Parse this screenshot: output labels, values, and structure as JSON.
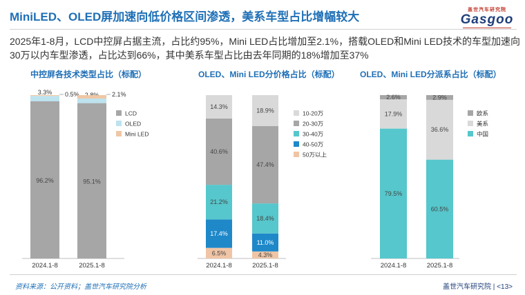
{
  "header": {
    "title": "MiniLED、OLED屏加速向低价格区间渗透，美系车型占比增幅较大",
    "logo_cn": "盖世汽车研究院",
    "logo_en": "Gasgoo"
  },
  "summary": "2025年1-8月，LCD中控屏占据主流，占比约95%，Mini LED占比增加至2.1%，搭载OLED和Mini LED技术的车型加速向30万以内车型渗透，占比达到66%，其中美系车型占比由去年同期的18%增加至37%",
  "footer": {
    "source": "资料来源：公开资料；盖世汽车研究院分析",
    "page": "盖世汽车研究院 | <13>"
  },
  "colors": {
    "LCD": "#a6a6a6",
    "OLED": "#bde3ef",
    "MiniLED": "#efc7a5",
    "p10_20": "#d9d9d9",
    "p20_30": "#a6a6a6",
    "p30_40": "#56c7cc",
    "p40_50": "#1e88c9",
    "p50": "#f0c5a5",
    "eu": "#a6a6a6",
    "us": "#d9d9d9",
    "cn": "#56c7cc"
  },
  "chart_data": [
    {
      "type": "bar",
      "stacked": true,
      "title": "中控屏各技术类型占比（标配）",
      "categories": [
        "2024.1-8",
        "2025.1-8"
      ],
      "series": [
        {
          "name": "LCD",
          "key": "LCD",
          "values": [
            96.2,
            95.1
          ],
          "labels": [
            "96.2%",
            "95.1%"
          ]
        },
        {
          "name": "OLED",
          "key": "OLED",
          "values": [
            3.3,
            2.8
          ],
          "labels": [
            "3.3%",
            "2.8%"
          ]
        },
        {
          "name": "Mini LED",
          "key": "MiniLED",
          "values": [
            0.5,
            2.1
          ],
          "labels": [
            "0.5%",
            "2.1%"
          ]
        }
      ],
      "ylim": [
        0,
        100
      ]
    },
    {
      "type": "bar",
      "stacked": true,
      "title": "OLED、Mini LED分价格占比（标配）",
      "categories": [
        "2024.1-8",
        "2025.1-8"
      ],
      "series": [
        {
          "name": "50万以上",
          "key": "p50",
          "values": [
            6.5,
            4.3
          ],
          "labels": [
            "6.5%",
            "4.3%"
          ]
        },
        {
          "name": "40-50万",
          "key": "p40_50",
          "values": [
            17.4,
            11.0
          ],
          "labels": [
            "17.4%",
            "11.0%"
          ]
        },
        {
          "name": "30-40万",
          "key": "p30_40",
          "values": [
            21.2,
            18.4
          ],
          "labels": [
            "21.2%",
            "18.4%"
          ]
        },
        {
          "name": "20-30万",
          "key": "p20_30",
          "values": [
            40.6,
            47.4
          ],
          "labels": [
            "40.6%",
            "47.4%"
          ]
        },
        {
          "name": "10-20万",
          "key": "p10_20",
          "values": [
            14.3,
            18.9
          ],
          "labels": [
            "14.3%",
            "18.9%"
          ]
        }
      ],
      "legend_order": [
        "10-20万",
        "20-30万",
        "30-40万",
        "40-50万",
        "50万以上"
      ],
      "ylim": [
        0,
        100
      ]
    },
    {
      "type": "bar",
      "stacked": true,
      "title": "OLED、Mini LED分派系占比（标配）",
      "categories": [
        "2024.1-8",
        "2025.1-8"
      ],
      "series": [
        {
          "name": "中国",
          "key": "cn",
          "values": [
            79.5,
            60.5
          ],
          "labels": [
            "79.5%",
            "60.5%"
          ]
        },
        {
          "name": "美系",
          "key": "us",
          "values": [
            17.9,
            36.6
          ],
          "labels": [
            "17.9%",
            "36.6%"
          ]
        },
        {
          "name": "欧系",
          "key": "eu",
          "values": [
            2.6,
            2.9
          ],
          "labels": [
            "2.6%",
            "2.9%"
          ]
        }
      ],
      "legend_order": [
        "欧系",
        "美系",
        "中国"
      ],
      "ylim": [
        0,
        100
      ]
    }
  ]
}
